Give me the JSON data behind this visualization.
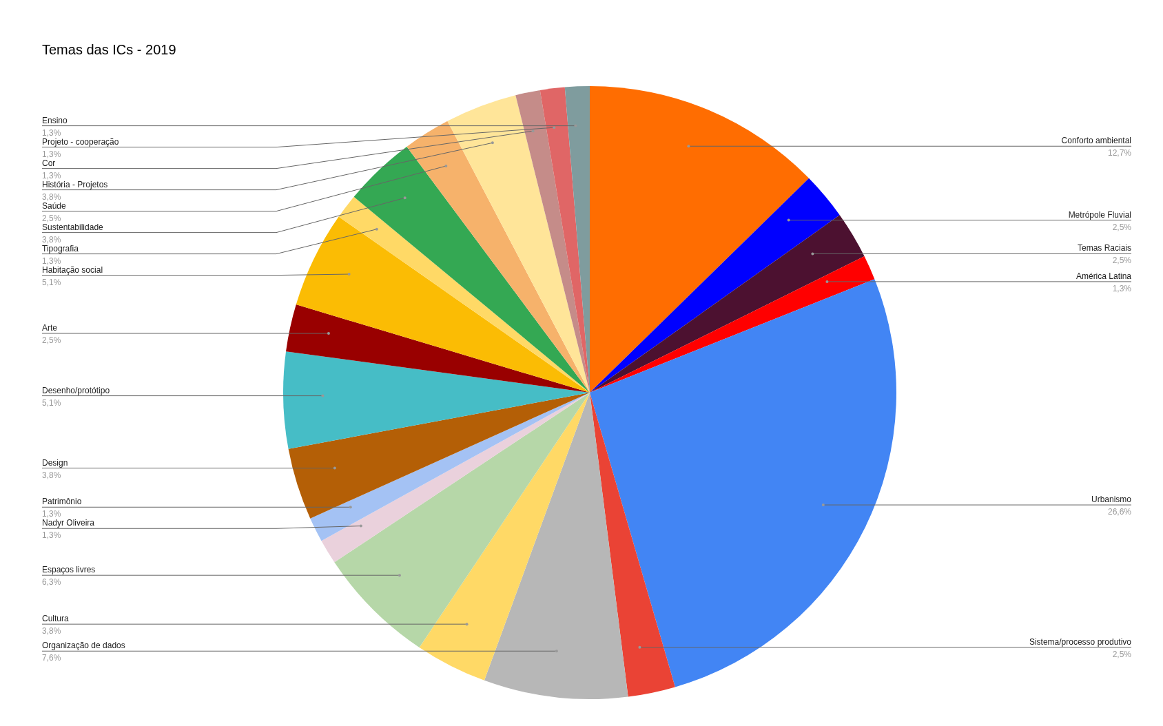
{
  "chart_data": {
    "type": "pie",
    "title": "Temas das ICs - 2019",
    "categories": [
      "Conforto ambiental",
      "Metrópole Fluvial",
      "Temas Raciais",
      "América Latina",
      "Urbanismo",
      "Sistema/processo produtivo",
      "Organização de dados",
      "Cultura",
      "Espaços livres",
      "Nadyr Oliveira",
      "Patrimônio",
      "Design",
      "Desenho/protótipo",
      "Arte",
      "Habitação social",
      "Tipografia",
      "Sustentabilidade",
      "Saúde",
      "História - Projetos",
      "Cor",
      "Projeto - cooperação",
      "Ensino"
    ],
    "values": [
      12.7,
      2.5,
      2.5,
      1.3,
      26.6,
      2.5,
      7.6,
      3.8,
      6.3,
      1.3,
      1.3,
      3.8,
      5.1,
      2.5,
      5.1,
      1.3,
      3.8,
      2.5,
      3.8,
      1.3,
      1.3,
      1.3
    ],
    "value_labels": [
      "12,7%",
      "2,5%",
      "2,5%",
      "1,3%",
      "26,6%",
      "2,5%",
      "7,6%",
      "3,8%",
      "6,3%",
      "1,3%",
      "1,3%",
      "3,8%",
      "5,1%",
      "2,5%",
      "5,1%",
      "1,3%",
      "3,8%",
      "2,5%",
      "3,8%",
      "1,3%",
      "1,3%",
      "1,3%"
    ],
    "colors": [
      "#ff6d01",
      "#0000ff",
      "#4c1130",
      "#ff0000",
      "#4285f4",
      "#ea4335",
      "#b7b7b7",
      "#ffd966",
      "#b6d7a8",
      "#ead1dc",
      "#a4c2f4",
      "#b45f06",
      "#46bdc6",
      "#990000",
      "#fbbc04",
      "#ffd966",
      "#34a853",
      "#f6b26b",
      "#ffe599",
      "#c58c89",
      "#e06666",
      "#7f9c9e"
    ],
    "legend": false
  }
}
